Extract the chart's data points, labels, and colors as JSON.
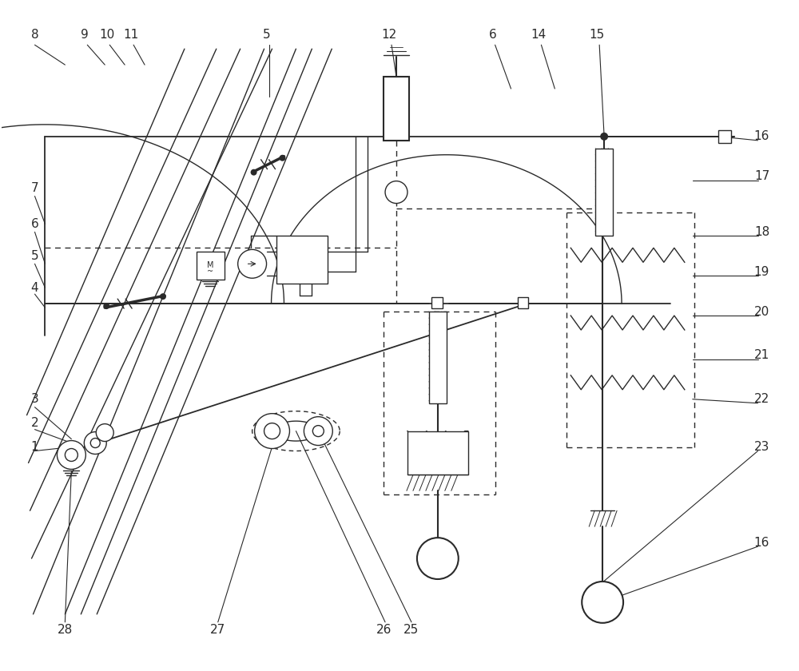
{
  "bg_color": "#ffffff",
  "lc": "#2a2a2a",
  "lw": 1.0,
  "fig_w": 10.0,
  "fig_h": 8.4,
  "xlim": [
    0,
    1000
  ],
  "ylim": [
    0,
    840
  ]
}
